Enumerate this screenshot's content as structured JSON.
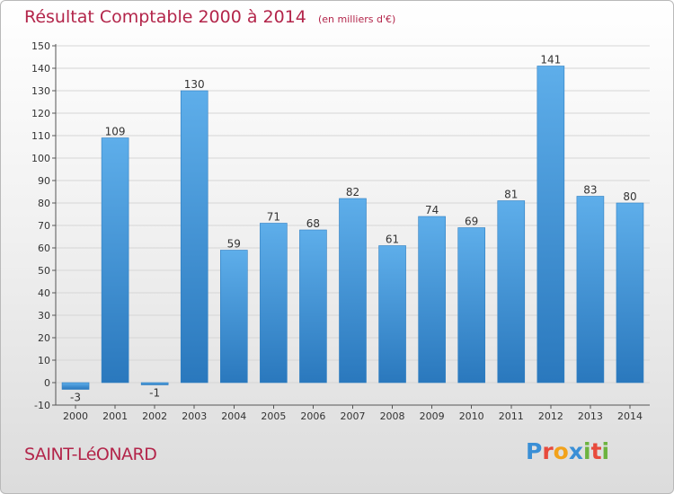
{
  "header": {
    "title": "Résultat Comptable 2000 à 2014",
    "subtitle": "(en milliers d'€)"
  },
  "footer": {
    "town": "SAINT-LéONARD",
    "logo_letters": [
      "P",
      "r",
      "o",
      "x",
      "i",
      "t",
      "i"
    ]
  },
  "colors": {
    "title": "#b3254a",
    "bar_light": "#5aaae8",
    "bar_dark": "#2a7bc0",
    "grid": "#d6d6d6",
    "axis": "#555555"
  },
  "chart_data": {
    "type": "bar",
    "title": "Résultat Comptable 2000 à 2014",
    "subtitle": "(en milliers d'€)",
    "xlabel": "",
    "ylabel": "",
    "categories": [
      "2000",
      "2001",
      "2002",
      "2003",
      "2004",
      "2005",
      "2006",
      "2007",
      "2008",
      "2009",
      "2010",
      "2011",
      "2012",
      "2013",
      "2014"
    ],
    "values": [
      -3,
      109,
      -1,
      130,
      59,
      71,
      68,
      82,
      61,
      74,
      69,
      81,
      141,
      83,
      80
    ],
    "data_labels": [
      "-3",
      "109",
      "-1",
      "130",
      "59",
      "71",
      "68",
      "82",
      "61",
      "74",
      "69",
      "81",
      "141",
      "83",
      "80"
    ],
    "ylim": [
      -10,
      150
    ],
    "yticks": [
      -10,
      0,
      10,
      20,
      30,
      40,
      50,
      60,
      70,
      80,
      90,
      100,
      110,
      120,
      130,
      140,
      150
    ],
    "grid": true,
    "legend": "none"
  }
}
